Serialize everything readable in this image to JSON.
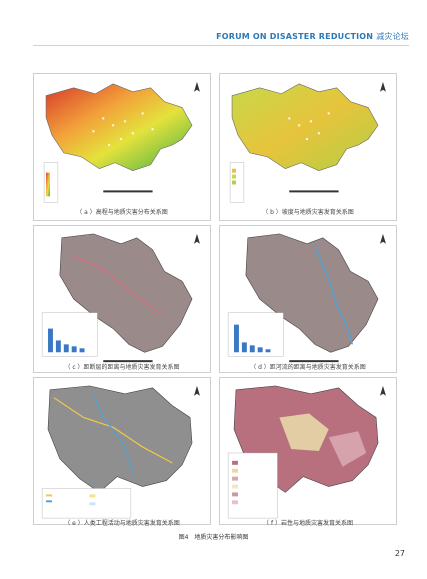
{
  "header": {
    "title_en": "FORUM ON DISASTER REDUCTION",
    "title_cn": "减灾论坛"
  },
  "panels": [
    {
      "caption": "（ a ）高程与地质灾害分布关系图"
    },
    {
      "caption": "（ b ）坡度与地质灾害发育关系图"
    },
    {
      "caption": "（ c ）距断层的距离与地质灾害发育关系图"
    },
    {
      "caption": "（ d ）距河流的距离与地质灾害发育关系图"
    },
    {
      "caption": "（ e ）人类工程活动与地质灾害发育关系图"
    },
    {
      "caption": "（ f ）岩性与地质灾害发育关系图"
    }
  ],
  "figure_caption": "图4　地质灾害分布影响图",
  "page_number": "27",
  "colors": {
    "accent": "#2c79b8"
  }
}
